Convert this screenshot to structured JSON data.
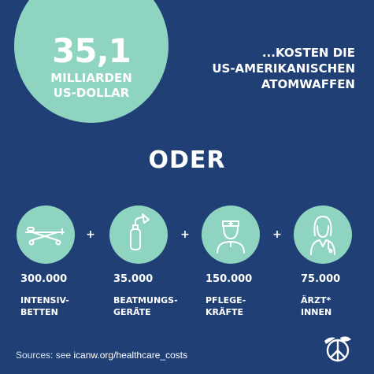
{
  "hero": {
    "amount": "35,1",
    "unit_line1": "MILLIARDEN",
    "unit_line2": "US-DOLLAR",
    "headline_line1": "...KOSTEN DIE",
    "headline_line2": "US-AMERIKANISCHEN",
    "headline_line3": "ATOMWAFFEN"
  },
  "separator": "ODER",
  "items": [
    {
      "value": "300.000",
      "label": "INTENSIV-\nBETTEN",
      "icon": "hospital-bed-icon"
    },
    {
      "value": "35.000",
      "label": "BEATMUNGS-\nGERÄTE",
      "icon": "ventilator-icon"
    },
    {
      "value": "150.000",
      "label": "PFLEGE-\nKRÄFTE",
      "icon": "nurse-icon"
    },
    {
      "value": "75.000",
      "label": "ÄRZT*\nINNEN",
      "icon": "doctor-icon"
    }
  ],
  "plus_sign": "+",
  "footer": {
    "sources_prefix": "Sources: see ",
    "sources_link": "icanw.org/healthcare_costs"
  },
  "colors": {
    "background": "#1f3f75",
    "accent": "#8fd4c1",
    "text": "#ffffff"
  }
}
